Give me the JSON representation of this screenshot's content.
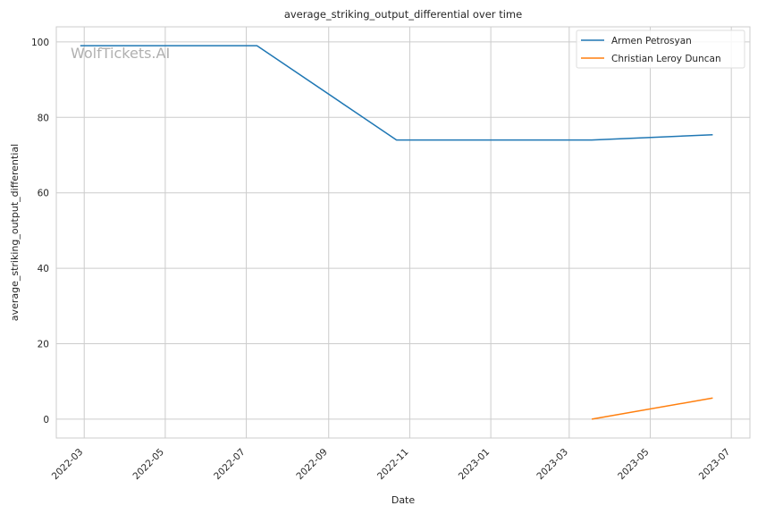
{
  "chart_data": {
    "type": "line",
    "title": "average_striking_output_differential over time",
    "xlabel": "Date",
    "ylabel": "average_striking_output_differential",
    "watermark": "WolfTickets.AI",
    "xlim": [
      "2022-02-08",
      "2023-07-15"
    ],
    "ylim": [
      -5,
      104
    ],
    "xticks": [
      "2022-03-01",
      "2022-05-01",
      "2022-07-01",
      "2022-09-01",
      "2022-11-01",
      "2023-01-01",
      "2023-03-01",
      "2023-05-01",
      "2023-07-01"
    ],
    "xtick_labels": [
      "2022-03",
      "2022-05",
      "2022-07",
      "2022-09",
      "2022-11",
      "2023-01",
      "2023-03",
      "2023-05",
      "2023-07"
    ],
    "yticks": [
      0,
      20,
      40,
      60,
      80,
      100
    ],
    "ytick_labels": [
      "0",
      "20",
      "40",
      "60",
      "80",
      "100"
    ],
    "grid": true,
    "legend_position": "top-right",
    "series": [
      {
        "name": "Armen Petrosyan",
        "color": "#1f77b4",
        "points": [
          {
            "x": "2022-02-26",
            "y": 99
          },
          {
            "x": "2022-07-09",
            "y": 99
          },
          {
            "x": "2022-10-22",
            "y": 74
          },
          {
            "x": "2023-03-18",
            "y": 74
          },
          {
            "x": "2023-06-17",
            "y": 75.4
          }
        ]
      },
      {
        "name": "Christian Leroy Duncan",
        "color": "#ff7f0e",
        "points": [
          {
            "x": "2023-03-18",
            "y": 0
          },
          {
            "x": "2023-06-17",
            "y": 5.6
          }
        ]
      }
    ]
  }
}
